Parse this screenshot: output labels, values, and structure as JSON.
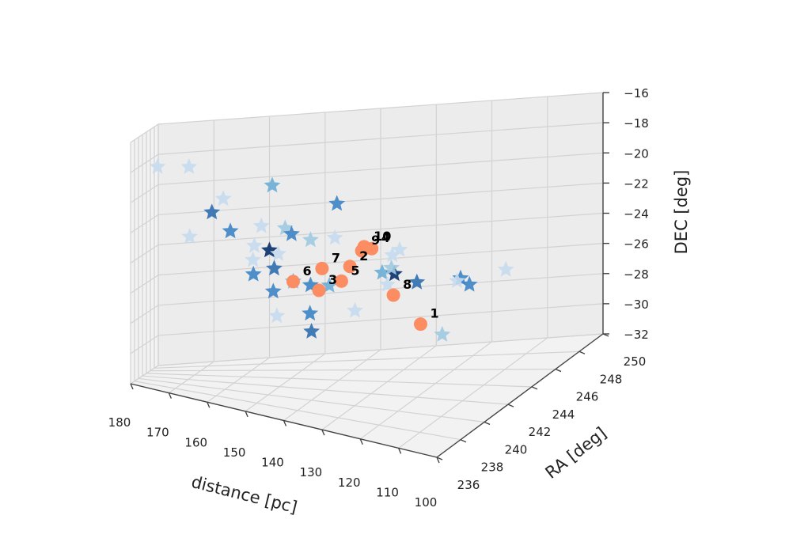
{
  "chart_data": {
    "type": "scatter3d",
    "xlabel": "distance [pc]",
    "ylabel": "RA [deg]",
    "zlabel": "DEC [deg]",
    "xlim": [
      180,
      100
    ],
    "ylim": [
      236,
      250
    ],
    "zlim": [
      -32,
      -16
    ],
    "xticks": [
      "180",
      "170",
      "160",
      "150",
      "140",
      "130",
      "120",
      "110",
      "100"
    ],
    "yticks": [
      "236",
      "238",
      "240",
      "242",
      "244",
      "246",
      "248",
      "250"
    ],
    "zticks": [
      "-16",
      "-18",
      "-20",
      "-22",
      "-24",
      "-26",
      "-28",
      "-30",
      "-32"
    ],
    "grid": true,
    "colors": {
      "pane": "#f2f2f2",
      "pane_right": "#ececec",
      "grid": "#d2d2d2",
      "edge": "#b8b8b8",
      "highlight": "#fc8d62"
    },
    "series": [
      {
        "marker": "star",
        "points": [
          {
            "x": 143.0,
            "y": 236.0,
            "z": -16.6,
            "c": "#6baed6"
          },
          {
            "x": 127.0,
            "y": 236.4,
            "z": -17.0,
            "c": "#3d85c6"
          },
          {
            "x": 166.0,
            "y": 237.3,
            "z": -17.0,
            "c": "#c6dbef"
          },
          {
            "x": 176.0,
            "y": 240.7,
            "z": -17.9,
            "c": "#c6dbef"
          },
          {
            "x": 159.0,
            "y": 236.2,
            "z": -19.4,
            "c": "#2f6fb0"
          },
          {
            "x": 158.0,
            "y": 237.8,
            "z": -18.8,
            "c": "#c6dbef"
          },
          {
            "x": 167.0,
            "y": 238.6,
            "z": -21.9,
            "c": "#c6dbef"
          },
          {
            "x": 156.0,
            "y": 237.6,
            "z": -20.8,
            "c": "#3d85c6"
          },
          {
            "x": 146.0,
            "y": 236.1,
            "z": -19.5,
            "c": "#c6dbef"
          },
          {
            "x": 151.0,
            "y": 238.3,
            "z": -21.7,
            "c": "#c6dbef"
          },
          {
            "x": 146.0,
            "y": 237.4,
            "z": -21.5,
            "c": "#08306b"
          },
          {
            "x": 154.0,
            "y": 240.4,
            "z": -23.3,
            "c": "#c6dbef"
          },
          {
            "x": 133.0,
            "y": 236.0,
            "z": -19.6,
            "c": "#9ecae1"
          },
          {
            "x": 144.0,
            "y": 238.6,
            "z": -20.3,
            "c": "#9ecae1"
          },
          {
            "x": 149.0,
            "y": 241.0,
            "z": -22.9,
            "c": "#c6dbef"
          },
          {
            "x": 150.0,
            "y": 237.4,
            "z": -23.3,
            "c": "#3d85c6"
          },
          {
            "x": 139.0,
            "y": 236.8,
            "z": -23.0,
            "c": "#6baed6"
          },
          {
            "x": 133.0,
            "y": 236.0,
            "z": -22.6,
            "c": "#3d85c6"
          },
          {
            "x": 143.0,
            "y": 236.3,
            "z": -22.2,
            "c": "#2f6fb0"
          },
          {
            "x": 130.0,
            "y": 236.9,
            "z": -22.8,
            "c": "#6baed6"
          },
          {
            "x": 148.0,
            "y": 239.4,
            "z": -24.9,
            "c": "#3d85c6"
          },
          {
            "x": 148.0,
            "y": 240.0,
            "z": -26.7,
            "c": "#c6dbef"
          },
          {
            "x": 139.0,
            "y": 239.4,
            "z": -27.2,
            "c": "#2f6fb0"
          },
          {
            "x": 132.0,
            "y": 238.6,
            "z": -20.4,
            "c": "#c6dbef"
          },
          {
            "x": 119.0,
            "y": 237.9,
            "z": -21.8,
            "c": "#6baed6"
          },
          {
            "x": 115.0,
            "y": 237.5,
            "z": -21.5,
            "c": "#08306b"
          },
          {
            "x": 116.0,
            "y": 237.6,
            "z": -21.2,
            "c": "#9ecae1"
          },
          {
            "x": 114.0,
            "y": 236.9,
            "z": -19.9,
            "c": "#c6dbef"
          },
          {
            "x": 110.0,
            "y": 236.1,
            "z": -18.9,
            "c": "#c6dbef"
          },
          {
            "x": 112.0,
            "y": 238.5,
            "z": -22.4,
            "c": "#2f6fb0"
          },
          {
            "x": 120.0,
            "y": 238.9,
            "z": -23.1,
            "c": "#c6dbef"
          },
          {
            "x": 100.0,
            "y": 238.0,
            "z": -21.3,
            "c": "#3d85c6"
          },
          {
            "x": 101.0,
            "y": 239.1,
            "z": -22.4,
            "c": "#3d85c6"
          },
          {
            "x": 100.0,
            "y": 237.7,
            "z": -21.3,
            "c": "#c6dbef"
          },
          {
            "x": 103.0,
            "y": 243.0,
            "z": -23.7,
            "c": "#c6dbef"
          },
          {
            "x": 134.0,
            "y": 242.3,
            "z": -26.7,
            "c": "#c6dbef"
          },
          {
            "x": 145.0,
            "y": 243.2,
            "z": -27.4,
            "c": "#3d85c6"
          },
          {
            "x": 118.0,
            "y": 243.7,
            "z": -28.6,
            "c": "#9ecae1"
          },
          {
            "x": 144.0,
            "y": 239.6,
            "z": -21.0,
            "c": "#3d85c6"
          }
        ]
      },
      {
        "marker": "circle",
        "points": [
          {
            "label": "1",
            "x": 117.0,
            "y": 241.0,
            "z": -26.6
          },
          {
            "label": "2",
            "x": 125.0,
            "y": 237.0,
            "z": -21.3
          },
          {
            "label": "3",
            "x": 134.0,
            "y": 237.6,
            "z": -23.6
          },
          {
            "label": "4",
            "x": 117.0,
            "y": 236.0,
            "z": -19.2
          },
          {
            "label": "5",
            "x": 128.0,
            "y": 237.4,
            "z": -22.6
          },
          {
            "label": "6",
            "x": 139.0,
            "y": 236.8,
            "z": -23.0
          },
          {
            "label": "7",
            "x": 134.0,
            "y": 238.0,
            "z": -22.3
          },
          {
            "label": "8",
            "x": 114.0,
            "y": 237.0,
            "z": -22.6
          },
          {
            "label": "9",
            "x": 122.0,
            "y": 237.0,
            "z": -20.1
          },
          {
            "label": "10",
            "x": 119.0,
            "y": 236.0,
            "z": -19.2
          }
        ]
      }
    ]
  }
}
